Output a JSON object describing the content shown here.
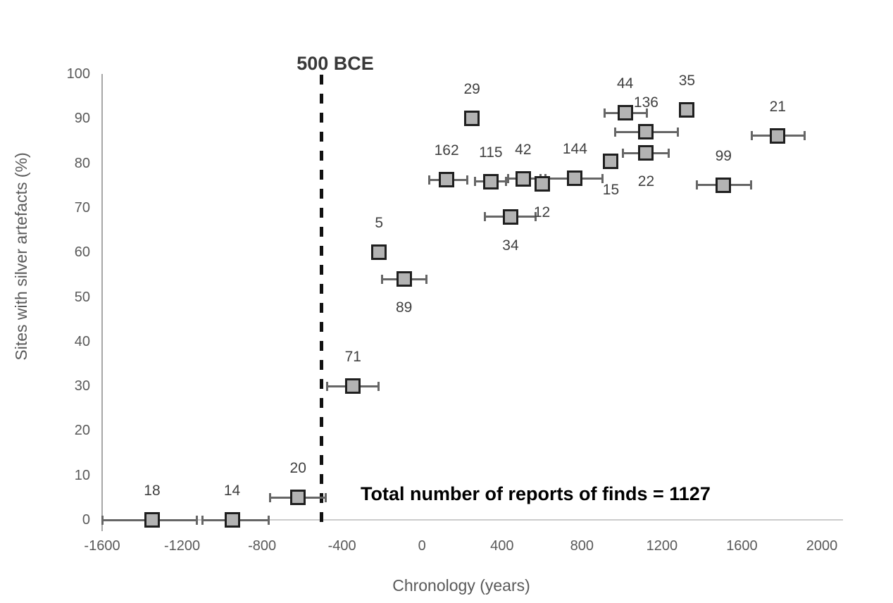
{
  "chart_data": {
    "type": "scatter",
    "title": "",
    "xlabel": "Chronology (years)",
    "ylabel": "Sites with silver artefacts (%)",
    "xlim": [
      -1600,
      2000
    ],
    "ylim": [
      0,
      100
    ],
    "x_ticks": [
      "-1600",
      "-1200",
      "-800",
      "-400",
      "0",
      "400",
      "800",
      "1200",
      "1600",
      "2000"
    ],
    "y_ticks": [
      "0",
      "10",
      "20",
      "30",
      "40",
      "50",
      "60",
      "70",
      "80",
      "90",
      "100"
    ],
    "grid": false,
    "legend": "none",
    "marker_style": "square",
    "colors": {
      "marker_fill": "#b3b3b3",
      "marker_border": "#1f1f1f",
      "error_bar": "#666666",
      "reference_line": "#111111",
      "axis_text": "#595959",
      "point_label_text": "#404040"
    },
    "reference_line": {
      "x": -500,
      "label": "500 BCE",
      "style": "dashed-vertical"
    },
    "annotation": {
      "text": "Total number of reports of finds = 1127"
    },
    "total_reports": 1127,
    "series": [
      {
        "name": "reports of finds",
        "points": [
          {
            "label": "18",
            "x": -1350,
            "y": 0,
            "xlow": -1600,
            "xhigh": -1125,
            "label_pos": "above"
          },
          {
            "label": "14",
            "x": -950,
            "y": 0,
            "xlow": -1100,
            "xhigh": -765,
            "label_pos": "above"
          },
          {
            "label": "20",
            "x": -620,
            "y": 5,
            "xlow": -760,
            "xhigh": -480,
            "label_pos": "above"
          },
          {
            "label": "71",
            "x": -345,
            "y": 30,
            "xlow": -475,
            "xhigh": -215,
            "label_pos": "above"
          },
          {
            "label": "5",
            "x": -215,
            "y": 60,
            "xlow": null,
            "xhigh": null,
            "label_pos": "above"
          },
          {
            "label": "89",
            "x": -90,
            "y": 54,
            "xlow": -200,
            "xhigh": 25,
            "label_pos": "below"
          },
          {
            "label": "162",
            "x": 123,
            "y": 76.3,
            "xlow": 35,
            "xhigh": 228,
            "label_pos": "above"
          },
          {
            "label": "29",
            "x": 250,
            "y": 90,
            "xlow": null,
            "xhigh": null,
            "label_pos": "above"
          },
          {
            "label": "115",
            "x": 344,
            "y": 75.9,
            "xlow": 264,
            "xhigh": 422,
            "label_pos": "above"
          },
          {
            "label": "34",
            "x": 443,
            "y": 68,
            "xlow": 313,
            "xhigh": 569,
            "label_pos": "below"
          },
          {
            "label": "42",
            "x": 506,
            "y": 76.5,
            "xlow": 429,
            "xhigh": 594,
            "label_pos": "above"
          },
          {
            "label": "12",
            "x": 600,
            "y": 75.3,
            "xlow": null,
            "xhigh": null,
            "label_pos": "below"
          },
          {
            "label": "144",
            "x": 765,
            "y": 76.6,
            "xlow": 615,
            "xhigh": 903,
            "label_pos": "above"
          },
          {
            "label": "15",
            "x": 945,
            "y": 80.4,
            "xlow": null,
            "xhigh": null,
            "label_pos": "below"
          },
          {
            "label": "44",
            "x": 1016,
            "y": 91.3,
            "xlow": 910,
            "xhigh": 1128,
            "label_pos": "above"
          },
          {
            "label": "136",
            "x": 1121,
            "y": 87,
            "xlow": 966,
            "xhigh": 1283,
            "label_pos": "above"
          },
          {
            "label": "22",
            "x": 1121,
            "y": 82.3,
            "xlow": 1002,
            "xhigh": 1234,
            "label_pos": "below"
          },
          {
            "label": "35",
            "x": 1325,
            "y": 92,
            "xlow": 1294,
            "xhigh": 1357,
            "label_pos": "above"
          },
          {
            "label": "99",
            "x": 1508,
            "y": 75.1,
            "xlow": 1374,
            "xhigh": 1649,
            "label_pos": "above"
          },
          {
            "label": "21",
            "x": 1779,
            "y": 86.1,
            "xlow": 1649,
            "xhigh": 1916,
            "label_pos": "above"
          }
        ]
      }
    ]
  }
}
